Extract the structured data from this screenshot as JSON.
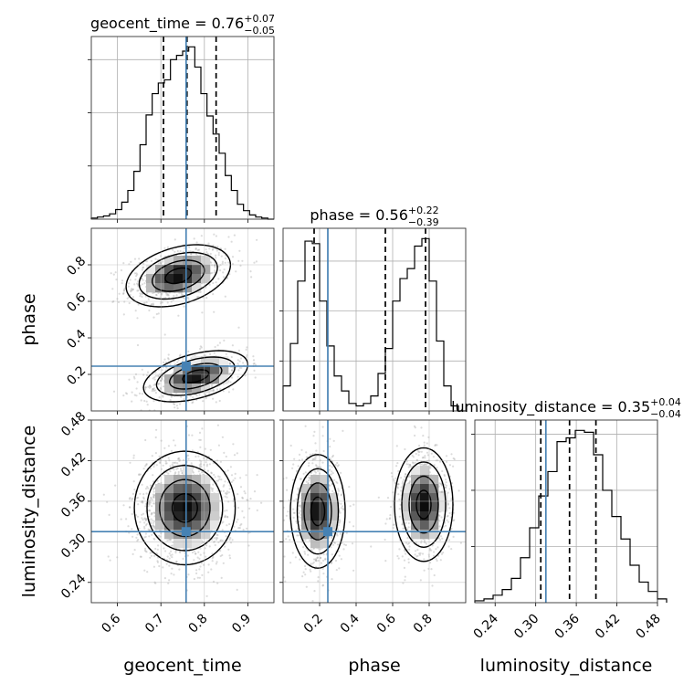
{
  "chart_data": {
    "type": "corner",
    "parameters": [
      {
        "key": "geocent_time",
        "label": "geocent_time",
        "range": [
          0.54,
          0.96
        ],
        "ticks": [
          0.6,
          0.7,
          0.8,
          0.9
        ],
        "tick_labels": [
          "0.6",
          "0.7",
          "0.8",
          "0.9"
        ],
        "truth": 0.758,
        "median": 0.76,
        "q_low": 0.706,
        "q_high": 0.827,
        "summary": {
          "name": "geocent_time",
          "value": "0.76",
          "plus": "+0.07",
          "minus": "−0.05"
        },
        "hist_x0": 0.54,
        "hist_bin": 0.014,
        "hist_counts": [
          1,
          2,
          3,
          5,
          9,
          16,
          27,
          45,
          70,
          98,
          118,
          128,
          131,
          150,
          154,
          158,
          162,
          143,
          118,
          97,
          80,
          62,
          41,
          27,
          14,
          8,
          4,
          2,
          1,
          0
        ]
      },
      {
        "key": "phase",
        "label": "phase",
        "range": [
          0.0,
          1.0
        ],
        "ticks": [
          0.2,
          0.4,
          0.6,
          0.8
        ],
        "tick_labels": [
          "0.2",
          "0.4",
          "0.6",
          "0.8"
        ],
        "truth": 0.245,
        "median": 0.56,
        "q_low": 0.17,
        "q_high": 0.78,
        "summary": {
          "name": "phase",
          "value": "0.56",
          "plus": "+0.22",
          "minus": "−0.39"
        },
        "hist_x0": 0.0,
        "hist_bin": 0.04,
        "hist_counts": [
          10,
          27,
          52,
          68,
          67,
          44,
          26,
          14,
          8,
          3,
          2,
          3,
          6,
          15,
          25,
          44,
          53,
          57,
          66,
          69,
          52,
          28,
          10,
          2,
          0
        ]
      },
      {
        "key": "luminosity_distance",
        "label": "luminosity_distance",
        "range": [
          0.21,
          0.48
        ],
        "ticks": [
          0.24,
          0.3,
          0.36,
          0.42,
          0.48
        ],
        "tick_labels": [
          "0.24",
          "0.30",
          "0.36",
          "0.42",
          "0.48"
        ],
        "truth": 0.315,
        "median": 0.35,
        "q_low": 0.3075,
        "q_high": 0.389,
        "summary": {
          "name": "luminosity_distance",
          "value": "0.35",
          "plus": "+0.04",
          "minus": "−0.04"
        },
        "hist_x0": 0.21,
        "hist_bin": 0.0135,
        "hist_counts": [
          1,
          2,
          4,
          7,
          13,
          24,
          40,
          57,
          70,
          86,
          88,
          92,
          91,
          79,
          60,
          46,
          34,
          20,
          11,
          6,
          2
        ]
      }
    ],
    "joint": [
      {
        "x": "geocent_time",
        "y": "phase",
        "blobs": [
          {
            "mx": 0.74,
            "my": 0.74,
            "sx": 0.06,
            "sy": 0.085,
            "r": 0.35,
            "w": 0.5
          },
          {
            "mx": 0.78,
            "my": 0.19,
            "sx": 0.06,
            "sy": 0.07,
            "r": 0.45,
            "w": 0.5
          }
        ]
      },
      {
        "x": "geocent_time",
        "y": "luminosity_distance",
        "blobs": [
          {
            "mx": 0.755,
            "my": 0.35,
            "sx": 0.058,
            "sy": 0.042,
            "r": 0.0,
            "w": 1.0
          }
        ]
      },
      {
        "x": "phase",
        "y": "luminosity_distance",
        "blobs": [
          {
            "mx": 0.19,
            "my": 0.345,
            "sx": 0.075,
            "sy": 0.042,
            "r": 0.0,
            "w": 0.5
          },
          {
            "mx": 0.77,
            "my": 0.355,
            "sx": 0.08,
            "sy": 0.042,
            "r": 0.0,
            "w": 0.5
          }
        ]
      }
    ],
    "colors": {
      "truth": "#4682b4",
      "hist": "#000000",
      "grid": "#b0b0b0",
      "quantile": "#000000"
    }
  }
}
